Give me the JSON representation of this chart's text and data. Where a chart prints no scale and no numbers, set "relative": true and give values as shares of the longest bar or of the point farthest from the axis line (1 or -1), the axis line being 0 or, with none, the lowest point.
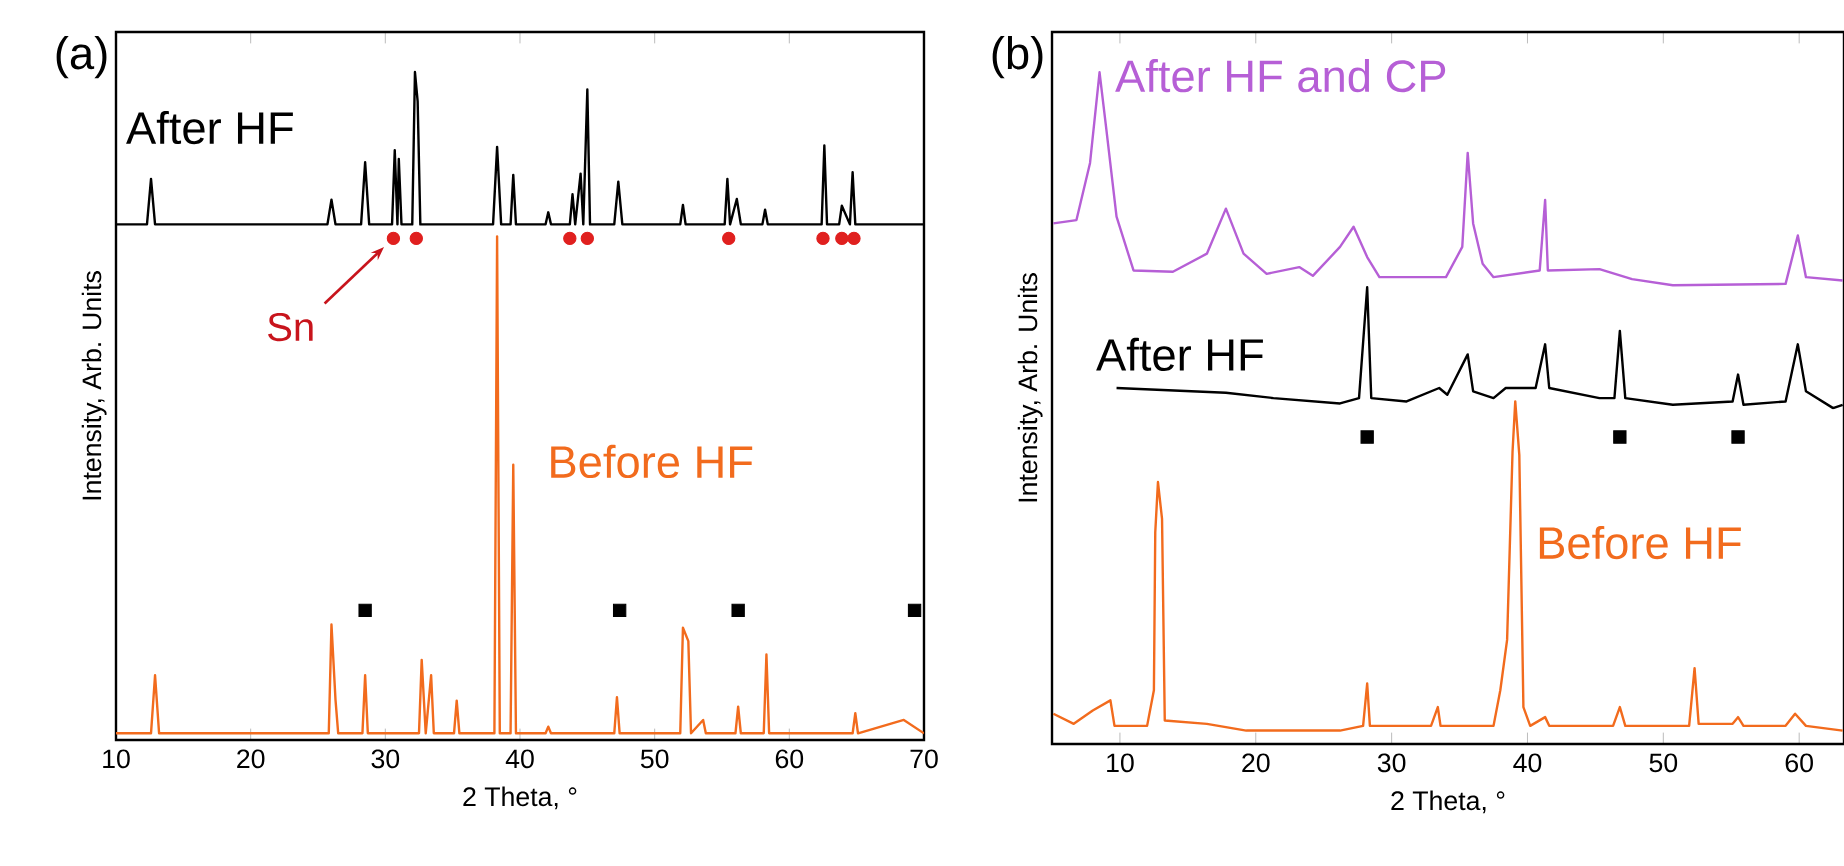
{
  "chart_data": [
    {
      "type": "line",
      "title": "(a)",
      "xlabel": "2 Theta, °",
      "ylabel": "Intensity, Arb. Units",
      "relative": true,
      "xlim": [
        10,
        70
      ],
      "xticks": [
        10,
        20,
        30,
        40,
        50,
        60,
        70
      ],
      "annotations": [
        {
          "text": "Sn",
          "x": 30.5,
          "y": 0.75
        }
      ],
      "series": [
        {
          "name": "After HF",
          "color": "#000000",
          "x": [
            10,
            12.3,
            12.6,
            12.9,
            25.7,
            26.0,
            26.3,
            28.2,
            28.5,
            28.8,
            30.5,
            30.7,
            30.9,
            31.0,
            31.2,
            32.0,
            32.2,
            32.4,
            32.6,
            38.0,
            38.3,
            38.6,
            39.3,
            39.5,
            39.7,
            41.9,
            42.1,
            42.3,
            43.7,
            43.9,
            44.1,
            44.5,
            44.7,
            45.0,
            45.2,
            47.0,
            47.3,
            47.6,
            51.9,
            52.1,
            52.3,
            55.2,
            55.4,
            55.6,
            56.1,
            56.4,
            58.0,
            58.2,
            58.4,
            62.4,
            62.6,
            62.8,
            63.7,
            63.9,
            64.5,
            64.7,
            64.9,
            70
          ],
          "values": [
            0.772,
            0.772,
            0.84,
            0.772,
            0.772,
            0.809,
            0.772,
            0.772,
            0.865,
            0.772,
            0.772,
            0.883,
            0.772,
            0.87,
            0.772,
            0.772,
            1.0,
            0.956,
            0.772,
            0.772,
            0.888,
            0.772,
            0.772,
            0.846,
            0.772,
            0.772,
            0.79,
            0.772,
            0.772,
            0.817,
            0.772,
            0.848,
            0.772,
            0.974,
            0.772,
            0.772,
            0.836,
            0.772,
            0.772,
            0.801,
            0.772,
            0.772,
            0.84,
            0.772,
            0.81,
            0.772,
            0.772,
            0.794,
            0.772,
            0.772,
            0.89,
            0.772,
            0.772,
            0.8,
            0.772,
            0.85,
            0.772,
            0.772
          ]
        },
        {
          "name": "Before HF",
          "color": "#f26b1d",
          "x": [
            10,
            12.6,
            12.9,
            13.2,
            25.8,
            26.0,
            26.3,
            26.5,
            28.3,
            28.5,
            28.7,
            32.5,
            32.7,
            33.0,
            33.4,
            33.6,
            35.1,
            35.3,
            35.5,
            38.1,
            38.3,
            38.5,
            39.3,
            39.5,
            39.7,
            41.9,
            42.1,
            42.3,
            47.0,
            47.2,
            47.4,
            51.9,
            52.1,
            52.5,
            52.7,
            53.6,
            53.8,
            56.0,
            56.2,
            56.4,
            58.1,
            58.3,
            58.5,
            64.7,
            64.9,
            65.1,
            68.5,
            70
          ],
          "values": [
            0.01,
            0.01,
            0.097,
            0.01,
            0.01,
            0.173,
            0.06,
            0.01,
            0.01,
            0.097,
            0.01,
            0.01,
            0.12,
            0.01,
            0.097,
            0.01,
            0.01,
            0.059,
            0.01,
            0.01,
            0.754,
            0.01,
            0.01,
            0.412,
            0.01,
            0.01,
            0.02,
            0.01,
            0.01,
            0.064,
            0.01,
            0.01,
            0.168,
            0.148,
            0.01,
            0.03,
            0.01,
            0.01,
            0.05,
            0.01,
            0.01,
            0.128,
            0.01,
            0.01,
            0.04,
            0.01,
            0.03,
            0.01
          ]
        },
        {
          "type": "scatter",
          "marker": "circle",
          "color": "#e0201f",
          "x": [
            30.6,
            32.3,
            43.7,
            45.0,
            55.5,
            62.5,
            63.9,
            64.8
          ],
          "values": [
            0.751,
            0.751,
            0.751,
            0.751,
            0.751,
            0.751,
            0.751,
            0.751
          ]
        },
        {
          "type": "scatter",
          "marker": "square",
          "color": "#000000",
          "x": [
            28.5,
            47.4,
            56.2,
            69.3
          ],
          "values": [
            0.194,
            0.194,
            0.194,
            0.194
          ]
        }
      ]
    },
    {
      "type": "line",
      "title": "(b)",
      "xlabel": "2 Theta, °",
      "ylabel": "Intensity, Arb. Units",
      "relative": true,
      "xlim": [
        5,
        63.3
      ],
      "xticks": [
        10,
        20,
        30,
        40,
        50,
        60
      ],
      "series": [
        {
          "name": "After HF and CP",
          "color": "#b65fd6",
          "x": [
            5.1,
            6.8,
            7.8,
            8.5,
            9.0,
            9.75,
            11.0,
            13.9,
            16.4,
            17.8,
            19.1,
            20.8,
            23.2,
            24.2,
            26.2,
            27.2,
            28.2,
            29.1,
            34.0,
            35.2,
            35.6,
            36.0,
            36.7,
            37.5,
            40.9,
            41.3,
            41.5,
            45.3,
            47.7,
            50.7,
            59.0,
            59.9,
            60.5,
            63.2
          ],
          "values": [
            0.775,
            0.78,
            0.865,
            1.0,
            0.915,
            0.785,
            0.705,
            0.703,
            0.73,
            0.797,
            0.73,
            0.7,
            0.71,
            0.697,
            0.74,
            0.77,
            0.725,
            0.695,
            0.695,
            0.74,
            0.88,
            0.775,
            0.715,
            0.695,
            0.705,
            0.81,
            0.705,
            0.707,
            0.692,
            0.683,
            0.685,
            0.757,
            0.695,
            0.69
          ]
        },
        {
          "name": "After HF",
          "color": "#000000",
          "x": [
            9.75,
            17.8,
            21.3,
            26.2,
            27.6,
            28.2,
            28.5,
            31.1,
            33.5,
            34.1,
            35.6,
            36.0,
            37.5,
            38.4,
            40.6,
            41.3,
            41.6,
            45.3,
            46.4,
            46.8,
            47.2,
            50.7,
            55.1,
            55.5,
            55.9,
            59.0,
            59.9,
            60.5,
            62.5,
            63.2
          ],
          "values": [
            0.53,
            0.523,
            0.515,
            0.507,
            0.515,
            0.68,
            0.515,
            0.51,
            0.53,
            0.52,
            0.58,
            0.525,
            0.515,
            0.53,
            0.53,
            0.595,
            0.53,
            0.515,
            0.515,
            0.615,
            0.515,
            0.505,
            0.51,
            0.55,
            0.505,
            0.51,
            0.595,
            0.525,
            0.5,
            0.505
          ]
        },
        {
          "name": "Before HF",
          "color": "#f26b1d",
          "x": [
            5.1,
            6.6,
            8.0,
            9.3,
            9.6,
            12.0,
            12.5,
            12.6,
            12.8,
            13.1,
            13.3,
            16.4,
            19.3,
            26.2,
            27.9,
            28.2,
            28.4,
            32.9,
            33.4,
            33.6,
            37.5,
            38.0,
            38.5,
            38.9,
            39.1,
            39.4,
            39.7,
            40.2,
            41.3,
            41.6,
            46.3,
            46.8,
            47.2,
            51.9,
            52.3,
            52.6,
            55.1,
            55.5,
            55.9,
            59.0,
            59.7,
            60.5,
            63.2
          ],
          "values": [
            0.045,
            0.03,
            0.05,
            0.065,
            0.027,
            0.027,
            0.08,
            0.315,
            0.39,
            0.335,
            0.035,
            0.03,
            0.02,
            0.02,
            0.027,
            0.09,
            0.027,
            0.027,
            0.055,
            0.027,
            0.027,
            0.08,
            0.155,
            0.435,
            0.51,
            0.43,
            0.055,
            0.027,
            0.04,
            0.027,
            0.027,
            0.055,
            0.027,
            0.027,
            0.113,
            0.03,
            0.03,
            0.04,
            0.027,
            0.027,
            0.045,
            0.027,
            0.02
          ]
        },
        {
          "type": "scatter",
          "marker": "square",
          "color": "#000000",
          "x": [
            28.2,
            46.8,
            55.5
          ],
          "values": [
            0.457,
            0.457,
            0.457
          ]
        }
      ]
    }
  ]
}
